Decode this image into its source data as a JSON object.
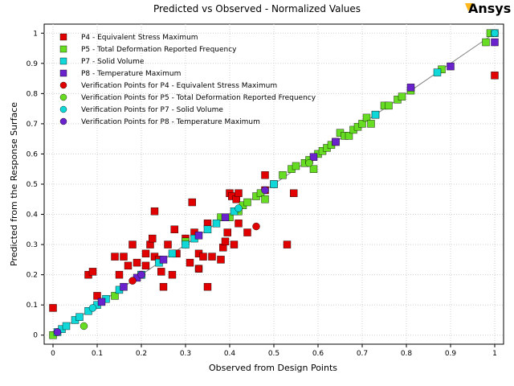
{
  "brand": {
    "logo_text": "Ansys",
    "logo_accent": "#ffb71b"
  },
  "chart_data": {
    "type": "scatter",
    "title": "Predicted vs Observed - Normalized Values",
    "xlabel": "Observed from Design Points",
    "ylabel": "Predicted from the Response Surface",
    "xlim": [
      -0.02,
      1.02
    ],
    "ylim": [
      -0.03,
      1.03
    ],
    "xticks": [
      "0",
      "0.1",
      "0.2",
      "0.3",
      "0.4",
      "0.5",
      "0.6",
      "0.7",
      "0.8",
      "0.9",
      "1"
    ],
    "yticks": [
      "0",
      "0.1",
      "0.2",
      "0.3",
      "0.4",
      "0.5",
      "0.6",
      "0.7",
      "0.8",
      "0.9",
      "1"
    ],
    "grid": true,
    "legend_position": "top-left",
    "reference_line": [
      [
        0,
        0
      ],
      [
        1,
        1
      ]
    ],
    "series": [
      {
        "name": "P4 - Equivalent Stress Maximum",
        "marker": "square",
        "color": "#e00000",
        "points": [
          [
            0,
            0.09
          ],
          [
            0.08,
            0.2
          ],
          [
            0.09,
            0.21
          ],
          [
            0.1,
            0.13
          ],
          [
            0.14,
            0.26
          ],
          [
            0.15,
            0.2
          ],
          [
            0.16,
            0.26
          ],
          [
            0.17,
            0.23
          ],
          [
            0.18,
            0.3
          ],
          [
            0.19,
            0.24
          ],
          [
            0.2,
            0.2
          ],
          [
            0.21,
            0.27
          ],
          [
            0.21,
            0.23
          ],
          [
            0.22,
            0.3
          ],
          [
            0.225,
            0.32
          ],
          [
            0.23,
            0.41
          ],
          [
            0.23,
            0.26
          ],
          [
            0.24,
            0.25
          ],
          [
            0.245,
            0.21
          ],
          [
            0.25,
            0.16
          ],
          [
            0.26,
            0.3
          ],
          [
            0.27,
            0.2
          ],
          [
            0.275,
            0.35
          ],
          [
            0.28,
            0.27
          ],
          [
            0.3,
            0.32
          ],
          [
            0.31,
            0.24
          ],
          [
            0.315,
            0.44
          ],
          [
            0.32,
            0.34
          ],
          [
            0.33,
            0.27
          ],
          [
            0.33,
            0.22
          ],
          [
            0.34,
            0.26
          ],
          [
            0.35,
            0.37
          ],
          [
            0.35,
            0.16
          ],
          [
            0.36,
            0.26
          ],
          [
            0.38,
            0.25
          ],
          [
            0.385,
            0.29
          ],
          [
            0.39,
            0.31
          ],
          [
            0.395,
            0.34
          ],
          [
            0.4,
            0.47
          ],
          [
            0.405,
            0.46
          ],
          [
            0.41,
            0.3
          ],
          [
            0.415,
            0.45
          ],
          [
            0.42,
            0.47
          ],
          [
            0.42,
            0.37
          ],
          [
            0.44,
            0.34
          ],
          [
            0.48,
            0.53
          ],
          [
            0.48,
            0.48
          ],
          [
            0.53,
            0.3
          ],
          [
            0.545,
            0.47
          ],
          [
            1.0,
            0.86
          ]
        ]
      },
      {
        "name": "P5 - Total Deformation Reported Frequency",
        "marker": "square",
        "color": "#66dd22",
        "points": [
          [
            0,
            0
          ],
          [
            0.14,
            0.13
          ],
          [
            0.3,
            0.31
          ],
          [
            0.38,
            0.39
          ],
          [
            0.4,
            0.39
          ],
          [
            0.42,
            0.41
          ],
          [
            0.43,
            0.43
          ],
          [
            0.44,
            0.44
          ],
          [
            0.46,
            0.46
          ],
          [
            0.47,
            0.47
          ],
          [
            0.48,
            0.45
          ],
          [
            0.5,
            0.5
          ],
          [
            0.52,
            0.53
          ],
          [
            0.54,
            0.55
          ],
          [
            0.55,
            0.56
          ],
          [
            0.57,
            0.57
          ],
          [
            0.58,
            0.58
          ],
          [
            0.59,
            0.55
          ],
          [
            0.6,
            0.6
          ],
          [
            0.61,
            0.61
          ],
          [
            0.62,
            0.62
          ],
          [
            0.63,
            0.63
          ],
          [
            0.64,
            0.64
          ],
          [
            0.65,
            0.67
          ],
          [
            0.66,
            0.66
          ],
          [
            0.67,
            0.66
          ],
          [
            0.68,
            0.68
          ],
          [
            0.69,
            0.69
          ],
          [
            0.7,
            0.7
          ],
          [
            0.71,
            0.72
          ],
          [
            0.72,
            0.7
          ],
          [
            0.73,
            0.73
          ],
          [
            0.75,
            0.76
          ],
          [
            0.76,
            0.76
          ],
          [
            0.78,
            0.78
          ],
          [
            0.79,
            0.79
          ],
          [
            0.81,
            0.81
          ],
          [
            0.88,
            0.88
          ],
          [
            0.98,
            0.97
          ],
          [
            0.99,
            1.0
          ]
        ]
      },
      {
        "name": "P7 - Solid Volume",
        "marker": "square",
        "color": "#10d8d8",
        "points": [
          [
            0.01,
            0.01
          ],
          [
            0.02,
            0.02
          ],
          [
            0.03,
            0.03
          ],
          [
            0.05,
            0.05
          ],
          [
            0.06,
            0.06
          ],
          [
            0.08,
            0.08
          ],
          [
            0.1,
            0.1
          ],
          [
            0.12,
            0.12
          ],
          [
            0.15,
            0.15
          ],
          [
            0.2,
            0.2
          ],
          [
            0.24,
            0.24
          ],
          [
            0.27,
            0.27
          ],
          [
            0.3,
            0.3
          ],
          [
            0.32,
            0.32
          ],
          [
            0.35,
            0.35
          ],
          [
            0.37,
            0.37
          ],
          [
            0.41,
            0.41
          ],
          [
            0.5,
            0.5
          ],
          [
            0.73,
            0.73
          ],
          [
            0.87,
            0.87
          ],
          [
            1.0,
            1.0
          ]
        ]
      },
      {
        "name": "P8 - Temperature Maximum",
        "marker": "square",
        "color": "#6a22cc",
        "points": [
          [
            0.11,
            0.11
          ],
          [
            0.16,
            0.16
          ],
          [
            0.19,
            0.19
          ],
          [
            0.25,
            0.25
          ],
          [
            0.33,
            0.33
          ],
          [
            0.39,
            0.39
          ],
          [
            0.59,
            0.59
          ],
          [
            0.64,
            0.64
          ],
          [
            0.81,
            0.82
          ],
          [
            0.9,
            0.89
          ],
          [
            1.0,
            0.97
          ]
        ]
      },
      {
        "name": "Verification Points for P4 - Equivalent Stress Maximum",
        "marker": "circle",
        "color": "#e00000",
        "points": [
          [
            0.18,
            0.18
          ],
          [
            0.33,
            0.22
          ],
          [
            0.46,
            0.36
          ]
        ]
      },
      {
        "name": "Verification Points for P5 - Total Deformation Reported Frequency",
        "marker": "circle",
        "color": "#66dd22",
        "points": [
          [
            0.07,
            0.03
          ],
          [
            0.58,
            0.57
          ]
        ]
      },
      {
        "name": "Verification Points for P7 - Solid Volume",
        "marker": "circle",
        "color": "#10d8d8",
        "points": [
          [
            0.09,
            0.09
          ],
          [
            0.42,
            0.42
          ],
          [
            1.0,
            1.0
          ]
        ]
      },
      {
        "name": "Verification Points for P8 - Temperature Maximum",
        "marker": "circle",
        "color": "#6a22cc",
        "points": [
          [
            0.01,
            0.01
          ],
          [
            0.2,
            0.2
          ],
          [
            0.48,
            0.48
          ]
        ]
      }
    ]
  }
}
